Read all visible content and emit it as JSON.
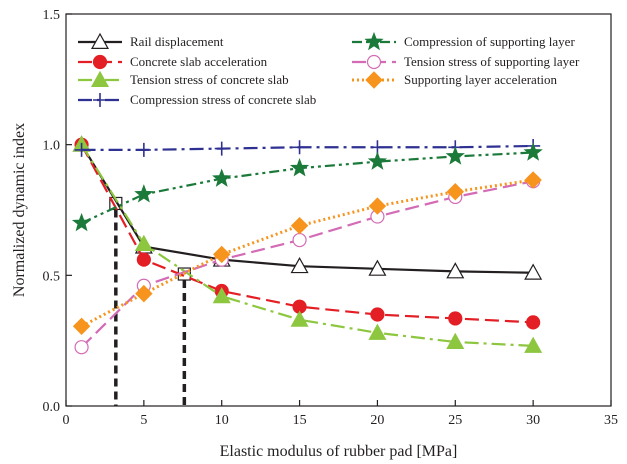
{
  "chart_data": {
    "type": "line",
    "title": "",
    "xlabel": "Elastic modulus of rubber pad [MPa]",
    "ylabel": "Normalized dynamic index",
    "xlim": [
      0,
      35
    ],
    "ylim": [
      0.0,
      1.5
    ],
    "xticks": [
      "0",
      "5",
      "10",
      "15",
      "20",
      "25",
      "30",
      "35"
    ],
    "yticks": [
      "0.0",
      "0.5",
      "1.0",
      "1.5"
    ],
    "grid": false,
    "legend_position": "top",
    "x": [
      1,
      5,
      10,
      15,
      20,
      25,
      30
    ],
    "series": [
      {
        "name": "Rail displacement",
        "color": "#231f20",
        "marker": "triangle-open",
        "dash": "solid",
        "values": [
          1.0,
          0.61,
          0.56,
          0.535,
          0.525,
          0.515,
          0.51
        ]
      },
      {
        "name": "Concrete slab acceleration",
        "color": "#e31e24",
        "marker": "circle-filled",
        "dash": "dash",
        "values": [
          1.0,
          0.56,
          0.44,
          0.38,
          0.35,
          0.335,
          0.32
        ]
      },
      {
        "name": "Tension stress of  concrete slab",
        "color": "#8dc63f",
        "marker": "triangle-filled",
        "dash": "dashdot",
        "values": [
          1.0,
          0.62,
          0.42,
          0.33,
          0.28,
          0.245,
          0.23
        ]
      },
      {
        "name": "Compression stress of  concrete slab",
        "color": "#2e3192",
        "marker": "plus",
        "dash": "dashdot",
        "values": [
          0.98,
          0.98,
          0.985,
          0.99,
          0.99,
          0.99,
          0.995
        ]
      },
      {
        "name": "Compression of supporting layer",
        "color": "#1b7a3a",
        "marker": "star",
        "dash": "dashdotdot",
        "values": [
          0.7,
          0.81,
          0.87,
          0.91,
          0.935,
          0.955,
          0.97
        ]
      },
      {
        "name": "Tension stress of supporting layer",
        "color": "#d36bb5",
        "marker": "circle-open",
        "dash": "dash",
        "values": [
          0.225,
          0.46,
          0.56,
          0.635,
          0.725,
          0.8,
          0.86
        ]
      },
      {
        "name": "Supporting layer acceleration",
        "color": "#f7941d",
        "marker": "diamond",
        "dash": "dot",
        "values": [
          0.305,
          0.43,
          0.58,
          0.69,
          0.765,
          0.82,
          0.865
        ]
      }
    ],
    "annotations": [
      {
        "type": "intersection-marker",
        "x": 3.2,
        "y": 0.775
      },
      {
        "type": "intersection-marker",
        "x": 7.6,
        "y": 0.505
      }
    ]
  }
}
